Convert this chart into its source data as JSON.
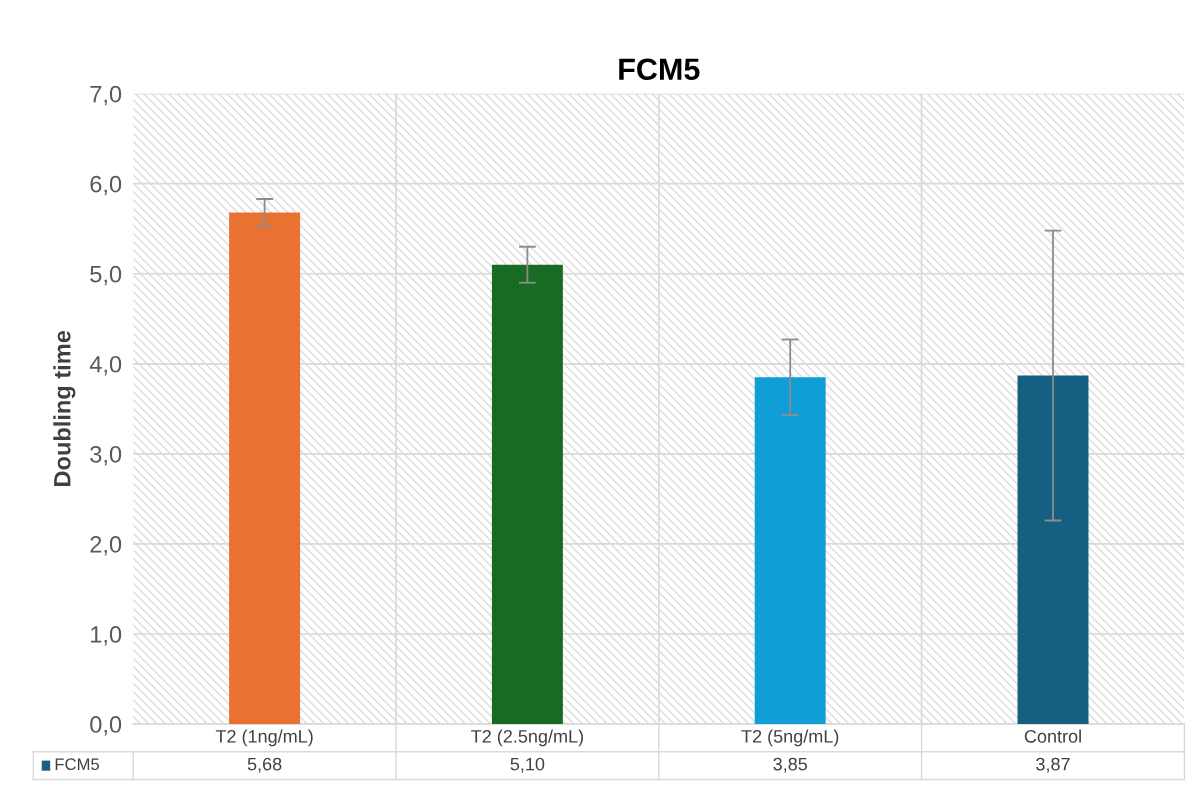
{
  "chart_data": {
    "type": "bar",
    "title": "FCM5",
    "ylabel": "Doubling time",
    "categories": [
      "T2 (1ng/mL)",
      "T2 (2.5ng/mL)",
      "T2 (5ng/mL)",
      "Control"
    ],
    "series": [
      {
        "name": "FCM5",
        "color": "#1a5e80",
        "colors": [
          "#e97132",
          "#196b24",
          "#0f9ed5",
          "#156082"
        ],
        "values": [
          5.68,
          5.1,
          3.85,
          3.87
        ],
        "errors": [
          0.15,
          0.2,
          0.42,
          1.61
        ],
        "value_labels": [
          "5,68",
          "5,10",
          "3,85",
          "3,87"
        ]
      }
    ],
    "ylim": [
      0,
      7
    ],
    "yticks": [
      {
        "value": 0,
        "label": "0,0"
      },
      {
        "value": 1,
        "label": "1,0"
      },
      {
        "value": 2,
        "label": "2,0"
      },
      {
        "value": 3,
        "label": "3,0"
      },
      {
        "value": 4,
        "label": "4,0"
      },
      {
        "value": 5,
        "label": "5,0"
      },
      {
        "value": 6,
        "label": "6,0"
      },
      {
        "value": 7,
        "label": "7,0"
      }
    ],
    "grid": true,
    "legend": "bottom left"
  }
}
